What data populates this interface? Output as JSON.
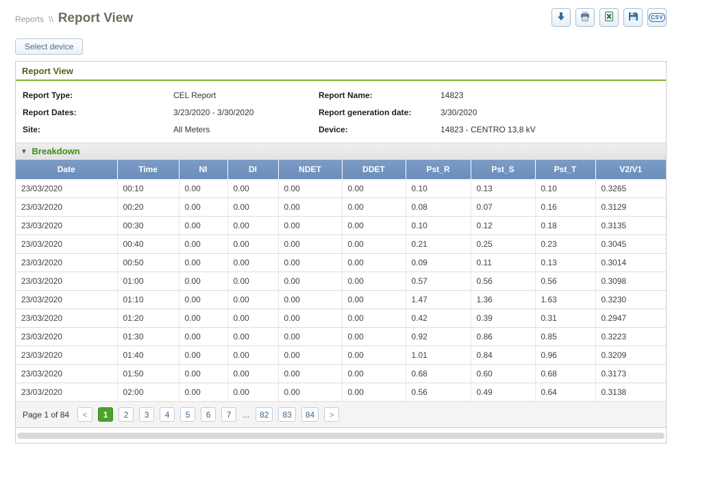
{
  "colors": {
    "accent_green": "#7fae2a",
    "breakdown_green": "#3e8c10",
    "table_header_blue": "#6f93c0",
    "active_page_green": "#4da02b",
    "toolbar_icon_blue": "#2e6da4"
  },
  "breadcrumb": {
    "root": "Reports",
    "separator": "\\\\",
    "current": "Report View"
  },
  "toolbar": {
    "buttons": [
      {
        "icon": "download-icon"
      },
      {
        "icon": "print-icon"
      },
      {
        "icon": "excel-icon"
      },
      {
        "icon": "save-icon"
      },
      {
        "icon": "csv-icon"
      }
    ],
    "csv_label": "CSV"
  },
  "select_device": {
    "label": "Select device"
  },
  "panel": {
    "title": "Report View",
    "meta": {
      "left": [
        {
          "label": "Report Type:",
          "value": "CEL Report"
        },
        {
          "label": "Report Dates:",
          "value": "3/23/2020 - 3/30/2020"
        },
        {
          "label": "Site:",
          "value": "All Meters"
        }
      ],
      "right": [
        {
          "label": "Report Name:",
          "value": "14823"
        },
        {
          "label": "Report generation date:",
          "value": "3/30/2020"
        },
        {
          "label": "Device:",
          "value": "14823 - CENTRO 13,8 kV"
        }
      ]
    },
    "breakdown": {
      "arrow": "▼",
      "label": "Breakdown"
    },
    "table": {
      "headers": [
        "Date",
        "Time",
        "NI",
        "DI",
        "NDET",
        "DDET",
        "Pst_R",
        "Pst_S",
        "Pst_T",
        "V2/V1"
      ],
      "rows": [
        [
          "23/03/2020",
          "00:10",
          "0.00",
          "0.00",
          "0.00",
          "0.00",
          "0.10",
          "0.13",
          "0.10",
          "0.3265"
        ],
        [
          "23/03/2020",
          "00:20",
          "0.00",
          "0.00",
          "0.00",
          "0.00",
          "0.08",
          "0.07",
          "0.16",
          "0.3129"
        ],
        [
          "23/03/2020",
          "00:30",
          "0.00",
          "0.00",
          "0.00",
          "0.00",
          "0.10",
          "0.12",
          "0.18",
          "0.3135"
        ],
        [
          "23/03/2020",
          "00:40",
          "0.00",
          "0.00",
          "0.00",
          "0.00",
          "0.21",
          "0.25",
          "0.23",
          "0.3045"
        ],
        [
          "23/03/2020",
          "00:50",
          "0.00",
          "0.00",
          "0.00",
          "0.00",
          "0.09",
          "0.11",
          "0.13",
          "0.3014"
        ],
        [
          "23/03/2020",
          "01:00",
          "0.00",
          "0.00",
          "0.00",
          "0.00",
          "0.57",
          "0.56",
          "0.56",
          "0.3098"
        ],
        [
          "23/03/2020",
          "01:10",
          "0.00",
          "0.00",
          "0.00",
          "0.00",
          "1.47",
          "1.36",
          "1.63",
          "0.3230"
        ],
        [
          "23/03/2020",
          "01:20",
          "0.00",
          "0.00",
          "0.00",
          "0.00",
          "0.42",
          "0.39",
          "0.31",
          "0.2947"
        ],
        [
          "23/03/2020",
          "01:30",
          "0.00",
          "0.00",
          "0.00",
          "0.00",
          "0.92",
          "0.86",
          "0.85",
          "0.3223"
        ],
        [
          "23/03/2020",
          "01:40",
          "0.00",
          "0.00",
          "0.00",
          "0.00",
          "1.01",
          "0.84",
          "0.96",
          "0.3209"
        ],
        [
          "23/03/2020",
          "01:50",
          "0.00",
          "0.00",
          "0.00",
          "0.00",
          "0.68",
          "0.60",
          "0.68",
          "0.3173"
        ],
        [
          "23/03/2020",
          "02:00",
          "0.00",
          "0.00",
          "0.00",
          "0.00",
          "0.56",
          "0.49",
          "0.64",
          "0.3138"
        ]
      ]
    },
    "pagination": {
      "summary": "Page 1 of 84",
      "prev": "<",
      "next": ">",
      "pages": [
        "1",
        "2",
        "3",
        "4",
        "5",
        "6",
        "7",
        "...",
        "82",
        "83",
        "84"
      ],
      "active": "1"
    }
  }
}
